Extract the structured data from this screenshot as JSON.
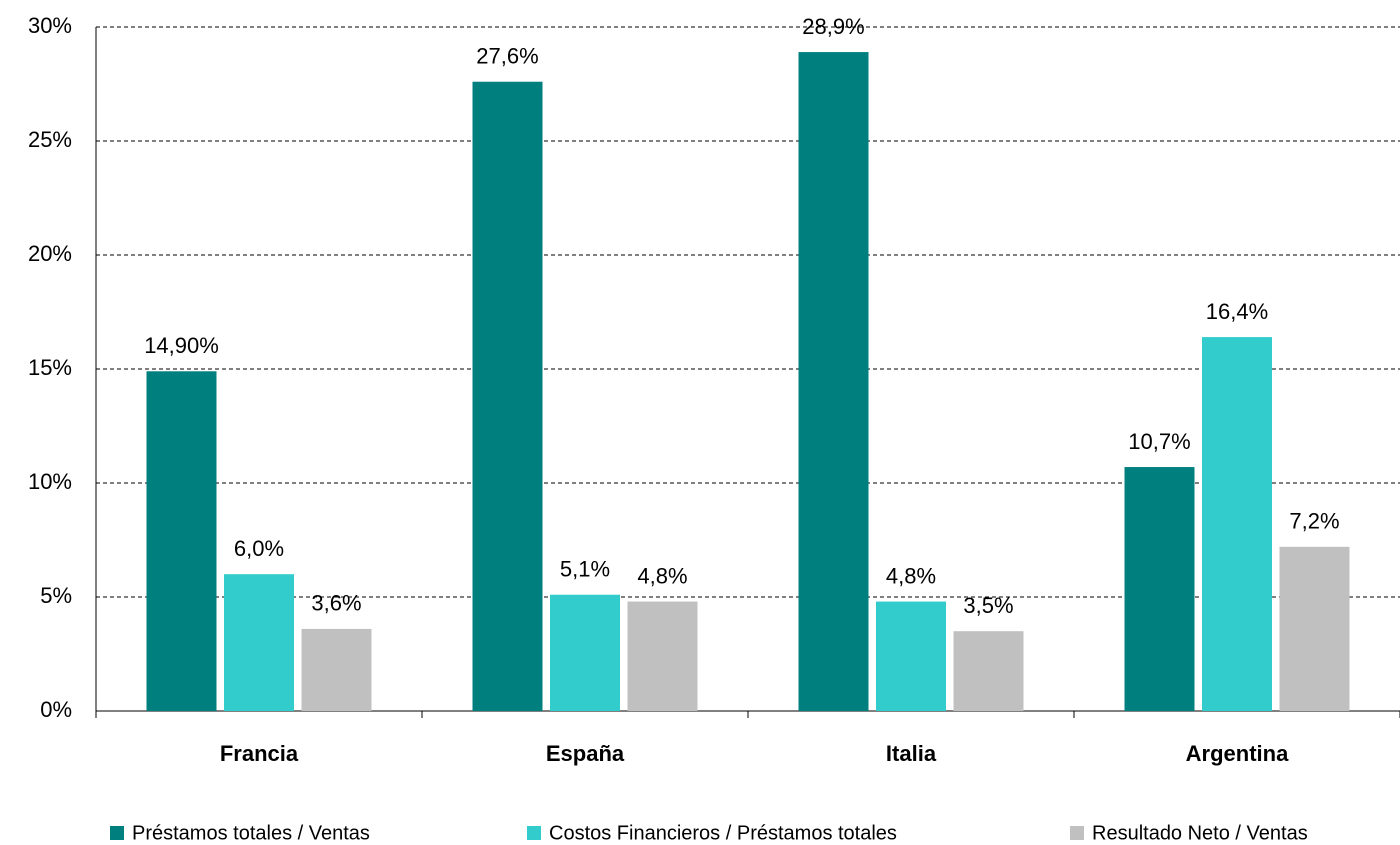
{
  "chart_data": {
    "type": "bar",
    "categories": [
      "Francia",
      "España",
      "Italia",
      "Argentina"
    ],
    "series": [
      {
        "name": "Préstamos totales / Ventas",
        "color": "#007f7f",
        "values": [
          14.9,
          27.6,
          28.9,
          10.7
        ],
        "value_labels": [
          "14,90%",
          "27,6%",
          "28,9%",
          "10,7%"
        ]
      },
      {
        "name": "Costos Financieros / Préstamos totales",
        "color": "#33cccc",
        "values": [
          6.0,
          5.1,
          4.8,
          16.4
        ],
        "value_labels": [
          "6,0%",
          "5,1%",
          "4,8%",
          "16,4%"
        ]
      },
      {
        "name": "Resultado Neto / Ventas",
        "color": "#c0c0c0",
        "values": [
          3.6,
          4.8,
          3.5,
          7.2
        ],
        "value_labels": [
          "3,6%",
          "4,8%",
          "3,5%",
          "7,2%"
        ]
      }
    ],
    "ylim": [
      0,
      30
    ],
    "yticks": [
      {
        "value": 0,
        "label": "0%"
      },
      {
        "value": 5,
        "label": "5%"
      },
      {
        "value": 10,
        "label": "10%"
      },
      {
        "value": 15,
        "label": "15%"
      },
      {
        "value": 20,
        "label": "20%"
      },
      {
        "value": 25,
        "label": "25%"
      },
      {
        "value": 30,
        "label": "30%"
      }
    ],
    "grid": true
  }
}
